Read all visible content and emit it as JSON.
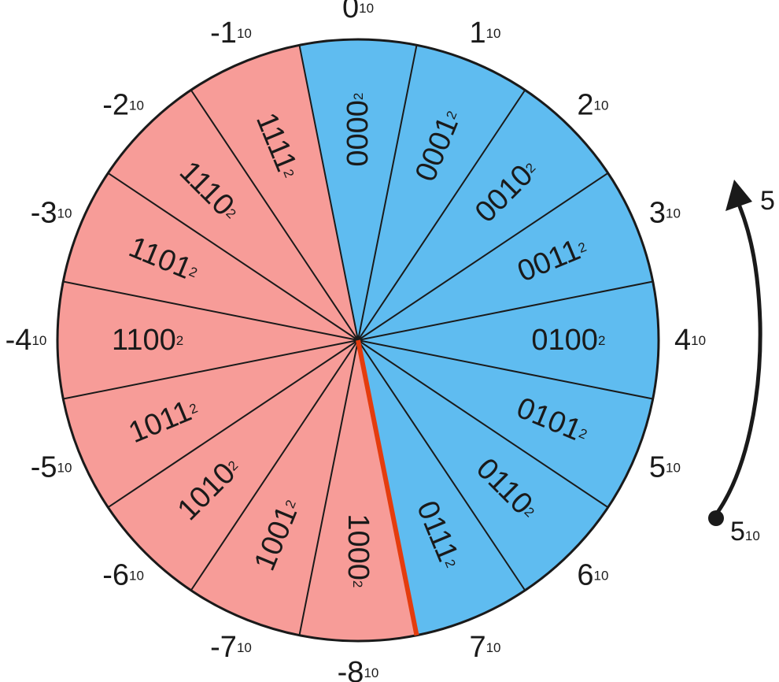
{
  "colors": {
    "positive": "#5fbcf0",
    "negative": "#f79c98",
    "overflow_line": "#e43c0e",
    "stroke": "#1a1a1a"
  },
  "segments": [
    {
      "binary": "0000",
      "sub": "2",
      "decimal": "0",
      "dsub": "10",
      "sign": "positive"
    },
    {
      "binary": "0001",
      "sub": "2",
      "decimal": "1",
      "dsub": "10",
      "sign": "positive"
    },
    {
      "binary": "0010",
      "sub": "2",
      "decimal": "2",
      "dsub": "10",
      "sign": "positive"
    },
    {
      "binary": "0011",
      "sub": "2",
      "decimal": "3",
      "dsub": "10",
      "sign": "positive"
    },
    {
      "binary": "0100",
      "sub": "2",
      "decimal": "4",
      "dsub": "10",
      "sign": "positive"
    },
    {
      "binary": "0101",
      "sub": "2",
      "decimal": "5",
      "dsub": "10",
      "sign": "positive"
    },
    {
      "binary": "0110",
      "sub": "2",
      "decimal": "6",
      "dsub": "10",
      "sign": "positive"
    },
    {
      "binary": "0111",
      "sub": "2",
      "decimal": "7",
      "dsub": "10",
      "sign": "positive"
    },
    {
      "binary": "1000",
      "sub": "2",
      "decimal": "-8",
      "dsub": "10",
      "sign": "negative"
    },
    {
      "binary": "1001",
      "sub": "2",
      "decimal": "-7",
      "dsub": "10",
      "sign": "negative"
    },
    {
      "binary": "1010",
      "sub": "2",
      "decimal": "-6",
      "dsub": "10",
      "sign": "negative"
    },
    {
      "binary": "1011",
      "sub": "2",
      "decimal": "-5",
      "dsub": "10",
      "sign": "negative"
    },
    {
      "binary": "1100",
      "sub": "2",
      "decimal": "-4",
      "dsub": "10",
      "sign": "negative"
    },
    {
      "binary": "1101",
      "sub": "2",
      "decimal": "-3",
      "dsub": "10",
      "sign": "negative"
    },
    {
      "binary": "1110",
      "sub": "2",
      "decimal": "-2",
      "dsub": "10",
      "sign": "negative"
    },
    {
      "binary": "1111",
      "sub": "2",
      "decimal": "-1",
      "dsub": "10",
      "sign": "negative"
    }
  ],
  "arrow": {
    "label": "5",
    "start_value": "5",
    "start_sub": "10"
  }
}
